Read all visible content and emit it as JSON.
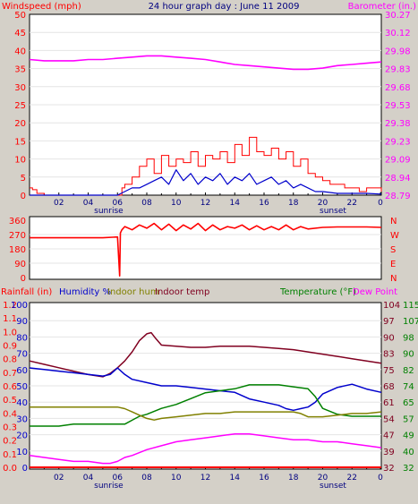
{
  "header": {
    "left_label": "Windspeed (mph)",
    "title": "24 hour graph day : June 11 2009",
    "right_label": "Barometer (in.)"
  },
  "colors": {
    "background": "#d4d0c8",
    "plot": "#ffffff",
    "windspeed": "#ff0000",
    "gust": "#ff0000",
    "wind_avg": "#0000cc",
    "barometer": "#ff00ff",
    "direction": "#ff0000",
    "humidity": "#0000cc",
    "indoor_hum": "#808000",
    "indoor_temp": "#800020",
    "temperature": "#008000",
    "dew_point": "#ff00ff",
    "rainfall": "#ff0000",
    "sun_label": "#000080"
  },
  "x_axis": {
    "tick_labels": [
      "02",
      "04",
      "06",
      "08",
      "10",
      "12",
      "14",
      "16",
      "18",
      "20",
      "22",
      "0"
    ],
    "sunrise_label": "sunrise",
    "sunset_label": "sunset",
    "sunrise_hour": 5.4,
    "sunset_hour": 20.7
  },
  "chart_data": [
    {
      "type": "line",
      "name": "wind-and-barometer",
      "x_range_hours": [
        0,
        24
      ],
      "left_axis": {
        "ticks": [
          "50",
          "45",
          "40",
          "35",
          "30",
          "25",
          "20",
          "15",
          "10",
          "5",
          "0"
        ],
        "range": [
          0,
          50
        ]
      },
      "right_axis": {
        "ticks": [
          "30.27",
          "30.12",
          "29.98",
          "29.83",
          "29.68",
          "29.53",
          "29.38",
          "29.23",
          "29.09",
          "28.94",
          "28.79"
        ],
        "range": [
          28.79,
          30.27
        ]
      },
      "series": [
        {
          "key": "gust",
          "x": [
            0,
            0.2,
            0.5,
            1,
            2,
            3,
            4,
            5,
            6,
            6.3,
            6.5,
            7,
            7.5,
            8,
            8.5,
            9,
            9.5,
            10,
            10.5,
            11,
            11.5,
            12,
            12.5,
            13,
            13.5,
            14,
            14.5,
            15,
            15.5,
            16,
            16.5,
            17,
            17.5,
            18,
            18.5,
            19,
            19.5,
            20,
            20.5,
            21,
            21.5,
            22,
            22.5,
            23,
            23.5,
            24
          ],
          "y": [
            2,
            1.5,
            0.5,
            0,
            0,
            0,
            0,
            0,
            0,
            2,
            3,
            5,
            8,
            10,
            6,
            11,
            8,
            10,
            9,
            12,
            8,
            11,
            10,
            12,
            9,
            14,
            11,
            16,
            12,
            11,
            13,
            10,
            12,
            8,
            10,
            6,
            5,
            4,
            3,
            3,
            2,
            2,
            1,
            2,
            2,
            1
          ]
        },
        {
          "key": "wind_avg",
          "x": [
            0,
            1,
            2,
            3,
            4,
            5,
            6,
            6.5,
            7,
            7.5,
            8,
            8.5,
            9,
            9.5,
            10,
            10.5,
            11,
            11.5,
            12,
            12.5,
            13,
            13.5,
            14,
            14.5,
            15,
            15.5,
            16,
            16.5,
            17,
            17.5,
            18,
            18.5,
            19,
            19.5,
            20,
            21,
            22,
            23,
            24
          ],
          "y": [
            0,
            0,
            0,
            0,
            0,
            0,
            0,
            1,
            2,
            2,
            3,
            4,
            5,
            3,
            7,
            4,
            6,
            3,
            5,
            4,
            6,
            3,
            5,
            4,
            6,
            3,
            4,
            5,
            3,
            4,
            2,
            3,
            2,
            1,
            1,
            0.5,
            0.5,
            0.5,
            0.3
          ]
        },
        {
          "key": "barometer",
          "x": [
            0,
            1,
            2,
            3,
            4,
            5,
            6,
            7,
            8,
            9,
            10,
            11,
            12,
            13,
            14,
            15,
            16,
            17,
            18,
            19,
            20,
            21,
            22,
            23,
            24
          ],
          "y": [
            29.9,
            29.89,
            29.89,
            29.89,
            29.9,
            29.9,
            29.91,
            29.92,
            29.93,
            29.93,
            29.92,
            29.91,
            29.9,
            29.88,
            29.86,
            29.85,
            29.84,
            29.83,
            29.82,
            29.82,
            29.83,
            29.85,
            29.86,
            29.87,
            29.88
          ]
        }
      ]
    },
    {
      "type": "line",
      "name": "wind-direction",
      "x_range_hours": [
        0,
        24
      ],
      "left_axis": {
        "ticks": [
          "360",
          "270",
          "180",
          "90",
          "0"
        ],
        "range": [
          0,
          360
        ]
      },
      "right_axis": {
        "ticks": [
          "N",
          "W",
          "S",
          "E",
          "N"
        ]
      },
      "series": [
        {
          "key": "direction",
          "x": [
            0,
            1,
            2,
            3,
            4,
            5,
            6,
            6.15,
            6.2,
            6.3,
            6.5,
            7,
            7.5,
            8,
            8.5,
            9,
            9.5,
            10,
            10.5,
            11,
            11.5,
            12,
            12.5,
            13,
            13.5,
            14,
            14.5,
            15,
            15.5,
            16,
            16.5,
            17,
            17.5,
            18,
            18.5,
            19,
            20,
            21,
            22,
            23,
            24
          ],
          "y": [
            250,
            250,
            250,
            250,
            250,
            250,
            255,
            10,
            280,
            300,
            320,
            300,
            330,
            310,
            340,
            300,
            335,
            295,
            330,
            305,
            340,
            295,
            330,
            300,
            320,
            310,
            330,
            300,
            325,
            300,
            320,
            300,
            330,
            300,
            320,
            305,
            315,
            318,
            318,
            318,
            315
          ]
        }
      ]
    },
    {
      "type": "line",
      "name": "temperature-humidity-rain",
      "x_range_hours": [
        0,
        24
      ],
      "labels": {
        "rainfall": "Rainfall (in)",
        "humidity": "Humidity %",
        "indoor_hum": "Indoor hum",
        "indoor_temp": "Indoor temp",
        "temperature": "Temperature (°F)",
        "dew_point": "Dew Point"
      },
      "rain_axis": {
        "ticks": [
          "1.2",
          "1.1",
          "1.0",
          "0.9",
          "0.8",
          "0.7",
          "0.6",
          "0.5",
          "0.4",
          "0.3",
          "0.2",
          "0.1",
          "0.0"
        ],
        "range": [
          0,
          1.2
        ]
      },
      "humidity_axis": {
        "ticks": [
          "100",
          "90",
          "80",
          "70",
          "60",
          "50",
          "40",
          "30",
          "20",
          "10",
          "0"
        ],
        "range": [
          0,
          100
        ]
      },
      "temp_axis_left": {
        "ticks": [
          "104",
          "97",
          "90",
          "83",
          "75",
          "68",
          "61",
          "54",
          "47",
          "39",
          "32"
        ],
        "range": [
          32,
          104
        ]
      },
      "temp_axis_right": {
        "ticks": [
          "115",
          "107",
          "98",
          "90",
          "82",
          "74",
          "65",
          "57",
          "49",
          "40",
          "32"
        ],
        "range": [
          32,
          115
        ]
      },
      "series": [
        {
          "key": "indoor_temp",
          "axis": "temp_left",
          "x": [
            0,
            1,
            2,
            3,
            4,
            5,
            5.5,
            6,
            6.5,
            7,
            7.5,
            8,
            8.3,
            8.6,
            9,
            10,
            11,
            12,
            13,
            14,
            15,
            16,
            17,
            18,
            19,
            20,
            21,
            22,
            23,
            24
          ],
          "y": [
            79,
            77.5,
            76,
            74.5,
            73,
            72,
            73.5,
            76,
            79,
            83,
            88,
            91,
            91.5,
            89,
            86,
            85.5,
            85,
            85,
            85.5,
            85.5,
            85.5,
            85,
            84.5,
            84,
            83,
            82,
            81,
            80,
            79,
            78
          ]
        },
        {
          "key": "humidity",
          "axis": "humidity",
          "x": [
            0,
            1,
            2,
            3,
            4,
            5,
            5.5,
            6,
            6.5,
            7,
            8,
            9,
            10,
            11,
            12,
            13,
            14,
            15,
            16,
            17,
            17.5,
            18,
            18.5,
            19,
            19.5,
            20,
            21,
            22,
            23,
            24
          ],
          "y": [
            61,
            60,
            59,
            58,
            57,
            56,
            57,
            61,
            57,
            54,
            52,
            50,
            50,
            49,
            48,
            47,
            46,
            42,
            40,
            38,
            36,
            35,
            36,
            37,
            40,
            45,
            49,
            51,
            48,
            46
          ]
        },
        {
          "key": "temperature",
          "axis": "temp_right",
          "x": [
            0,
            1,
            2,
            3,
            4,
            5,
            6,
            6.5,
            7,
            7.5,
            8,
            9,
            10,
            11,
            12,
            13,
            14,
            15,
            16,
            17,
            18,
            19,
            19.5,
            20,
            21,
            22,
            23,
            24
          ],
          "y": [
            53,
            53,
            53,
            54,
            54,
            54,
            54,
            54,
            56,
            58,
            59,
            62,
            64,
            67,
            70,
            71,
            72,
            74,
            74,
            74,
            73,
            72,
            68,
            62,
            59,
            58,
            58,
            58
          ]
        },
        {
          "key": "indoor_hum",
          "axis": "humidity",
          "x": [
            0,
            1,
            2,
            3,
            4,
            5,
            6,
            6.5,
            7,
            7.5,
            8,
            8.5,
            9,
            10,
            11,
            12,
            13,
            14,
            15,
            16,
            17,
            18,
            18.5,
            19,
            20,
            21,
            22,
            23,
            24
          ],
          "y": [
            37,
            37,
            37,
            37,
            37,
            37,
            37,
            36,
            34,
            32,
            30,
            29,
            30,
            31,
            32,
            33,
            33,
            34,
            34,
            34,
            34,
            34,
            33,
            31,
            31,
            32,
            33,
            33,
            34
          ]
        },
        {
          "key": "dew_point",
          "axis": "temp_right",
          "x": [
            0,
            1,
            2,
            3,
            4,
            5,
            5.5,
            6,
            6.5,
            7,
            8,
            9,
            10,
            11,
            12,
            13,
            14,
            15,
            16,
            17,
            18,
            19,
            20,
            21,
            22,
            23,
            24
          ],
          "y": [
            38,
            37,
            36,
            35,
            35,
            34,
            34,
            35,
            37,
            38,
            41,
            43,
            45,
            46,
            47,
            48,
            49,
            49,
            48,
            47,
            46,
            46,
            45,
            45,
            44,
            43,
            42
          ]
        },
        {
          "key": "rainfall",
          "axis": "rain",
          "x": [
            0,
            24
          ],
          "y": [
            0,
            0
          ]
        }
      ]
    }
  ]
}
